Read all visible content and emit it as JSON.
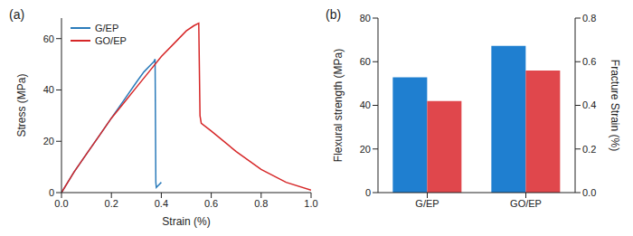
{
  "chart_data": [
    {
      "type": "line",
      "title": "(a)",
      "xlabel": "Strain (%)",
      "ylabel": "Stress (MPa)",
      "xlim": [
        0,
        1.0
      ],
      "xticks": [
        {
          "value": 0,
          "label": "0.0"
        },
        0.2,
        0.4,
        0.6,
        0.8,
        {
          "value": 1.0,
          "label": "1.0"
        }
      ],
      "ylim": [
        0,
        68
      ],
      "yticks": [
        0,
        20,
        40,
        60
      ],
      "legend": "upper left",
      "series": [
        {
          "name": "G/EP",
          "color": "#2b7bba",
          "x": [
            0,
            0.05,
            0.1,
            0.15,
            0.2,
            0.25,
            0.3,
            0.33,
            0.36,
            0.37,
            0.375,
            0.378,
            0.38,
            0.39,
            0.4
          ],
          "values": [
            0,
            8,
            15,
            22,
            29,
            36,
            43,
            47,
            50,
            51,
            52,
            4,
            2,
            3,
            4
          ]
        },
        {
          "name": "GO/EP",
          "color": "#d62728",
          "x": [
            0,
            0.05,
            0.1,
            0.15,
            0.2,
            0.25,
            0.3,
            0.35,
            0.4,
            0.45,
            0.5,
            0.53,
            0.55,
            0.555,
            0.56,
            0.6,
            0.7,
            0.8,
            0.9,
            1.0
          ],
          "values": [
            0,
            8,
            15,
            22,
            29,
            35,
            41,
            47,
            53,
            58,
            63,
            65,
            66,
            30,
            27,
            24,
            16,
            9,
            4,
            1
          ]
        }
      ]
    },
    {
      "type": "bar",
      "title": "(b)",
      "ylabel": "Flexural strength (MPa)",
      "y2label": "Fracture Strain (%)",
      "categories": [
        "G/EP",
        "GO/EP"
      ],
      "ylim": [
        0,
        80
      ],
      "yticks": [
        0,
        20,
        40,
        60,
        80
      ],
      "y2lim": [
        0,
        0.8
      ],
      "y2ticks": [
        {
          "value": 0,
          "label": "0.0"
        },
        0.2,
        0.4,
        0.6,
        {
          "value": 0.8,
          "label": "0.8"
        }
      ],
      "series": [
        {
          "color": "#1f7fd0",
          "values": [
            52.8,
            67.3
          ]
        },
        {
          "color": "#e0474c",
          "values": [
            0.42,
            0.56
          ],
          "axis": "y2"
        }
      ]
    }
  ]
}
